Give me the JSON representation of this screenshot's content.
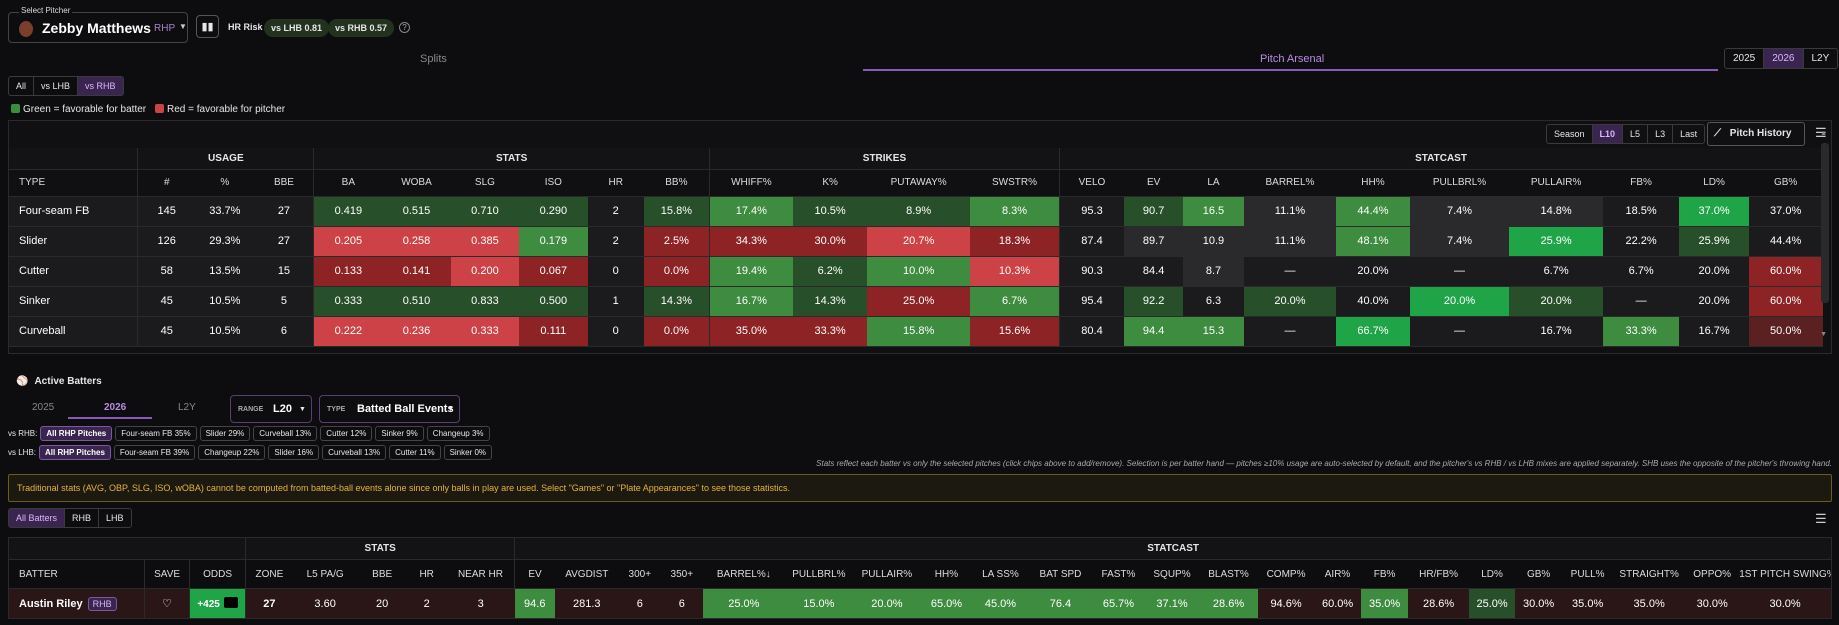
{
  "header": {
    "select_label": "Select Pitcher",
    "pitcher_name": "Zebby Matthews",
    "pitcher_hand": "RHP",
    "hr_risk_label": "HR Risk",
    "vs_lhb_label": "vs LHB",
    "vs_lhb_value": "0.81",
    "vs_rhb_label": "vs RHB",
    "vs_rhb_value": "0.57",
    "help": "?"
  },
  "tabs": {
    "splits": "Splits",
    "arsenal": "Pitch Arsenal"
  },
  "years": [
    "2025",
    "2026",
    "L2Y"
  ],
  "split_filter": [
    "All",
    "vs LHB",
    "vs RHB"
  ],
  "legend": {
    "green": "Green = favorable for batter",
    "red": "Red = favorable for pitcher"
  },
  "range_filter": [
    "Season",
    "L10",
    "L5",
    "L3",
    "Last"
  ],
  "pitch_history": "Pitch History",
  "arsenal": {
    "groups": [
      "",
      "USAGE",
      "STATS",
      "STRIKES",
      "STATCAST"
    ],
    "headers": [
      "TYPE",
      "#",
      "%",
      "BBE",
      "BA",
      "WOBA",
      "SLG",
      "ISO",
      "HR",
      "BB%",
      "WHIFF%",
      "K%",
      "PUTAWAY%",
      "SWSTR%",
      "VELO",
      "EV",
      "LA",
      "BARREL%",
      "HH%",
      "PULLBRL%",
      "PULLAIR%",
      "FB%",
      "LD%",
      "GB%"
    ],
    "rows": [
      [
        "Four-seam FB",
        "145",
        "33.7%",
        "27",
        "0.419",
        "0.515",
        "0.710",
        "0.290",
        "2",
        "15.8%",
        "17.4%",
        "10.5%",
        "8.9%",
        "8.3%",
        "95.3",
        "90.7",
        "16.5",
        "11.1%",
        "44.4%",
        "7.4%",
        "14.8%",
        "18.5%",
        "37.0%",
        "37.0%"
      ],
      [
        "Slider",
        "126",
        "29.3%",
        "27",
        "0.205",
        "0.258",
        "0.385",
        "0.179",
        "2",
        "2.5%",
        "34.3%",
        "30.0%",
        "20.7%",
        "18.3%",
        "87.4",
        "89.7",
        "10.9",
        "11.1%",
        "48.1%",
        "7.4%",
        "25.9%",
        "22.2%",
        "25.9%",
        "44.4%"
      ],
      [
        "Cutter",
        "58",
        "13.5%",
        "15",
        "0.133",
        "0.141",
        "0.200",
        "0.067",
        "0",
        "0.0%",
        "19.4%",
        "6.2%",
        "10.0%",
        "10.3%",
        "90.3",
        "84.4",
        "8.7",
        "—",
        "20.0%",
        "—",
        "6.7%",
        "6.7%",
        "20.0%",
        "60.0%"
      ],
      [
        "Sinker",
        "45",
        "10.5%",
        "5",
        "0.333",
        "0.510",
        "0.833",
        "0.500",
        "1",
        "14.3%",
        "16.7%",
        "14.3%",
        "25.0%",
        "6.7%",
        "95.4",
        "92.2",
        "6.3",
        "20.0%",
        "40.0%",
        "20.0%",
        "20.0%",
        "—",
        "20.0%",
        "60.0%"
      ],
      [
        "Curveball",
        "45",
        "10.5%",
        "6",
        "0.222",
        "0.236",
        "0.333",
        "0.111",
        "0",
        "0.0%",
        "35.0%",
        "33.3%",
        "15.8%",
        "15.6%",
        "80.4",
        "94.4",
        "15.3",
        "—",
        "66.7%",
        "—",
        "16.7%",
        "33.3%",
        "16.7%",
        "50.0%"
      ]
    ]
  },
  "active": {
    "title": "Active Batters",
    "years": [
      "2025",
      "2026",
      "L2Y"
    ],
    "range_label": "RANGE",
    "range_value": "L20",
    "type_label": "TYPE",
    "type_value": "Batted Ball Events",
    "vs_rhb_label": "vs RHB:",
    "vs_rhb_chips": [
      "All RHP Pitches",
      "Four-seam FB 35%",
      "Slider 29%",
      "Curveball 13%",
      "Cutter 12%",
      "Sinker 9%",
      "Changeup 3%"
    ],
    "vs_lhb_label": "vs LHB:",
    "vs_lhb_chips": [
      "All RHP Pitches",
      "Four-seam FB 39%",
      "Changeup 22%",
      "Slider 16%",
      "Curveball 13%",
      "Cutter 11%",
      "Sinker 0%"
    ],
    "note": "Stats reflect each batter vs only the selected pitches (click chips above to add/remove). Selection is per batter hand — pitches ≥10% usage are auto-selected by default, and the pitcher's vs RHB / vs LHB mixes are applied separately. SHB uses the opposite of the pitcher's throwing hand.",
    "warning": "Traditional stats (AVG, OBP, SLG, ISO, wOBA) cannot be computed from batted-ball events alone since only balls in play are used. Select \"Games\" or \"Plate Appearances\" to see those statistics.",
    "batter_filter": [
      "All Batters",
      "RHB",
      "LHB"
    ]
  },
  "batters": {
    "groups": [
      "STATS",
      "STATCAST"
    ],
    "headers": [
      "BATTER",
      "SAVE",
      "ODDS",
      "ZONE",
      "L5 PA/G",
      "BBE",
      "HR",
      "NEAR HR",
      "EV",
      "AVGDIST",
      "300+",
      "350+",
      "BARREL%↓",
      "PULLBRL%",
      "PULLAIR%",
      "HH%",
      "LA SS%",
      "BAT SPD",
      "FAST%",
      "SQUP%",
      "BLAST%",
      "COMP%",
      "AIR%",
      "FB%",
      "HR/FB%",
      "LD%",
      "GB%",
      "PULL%",
      "STRAIGHT%",
      "OPPO%",
      "1ST PITCH SWING%"
    ],
    "rows": [
      [
        "Austin Riley",
        "RHB",
        "♡",
        "+425",
        "27",
        "3.60",
        "20",
        "2",
        "3",
        "94.6",
        "281.3",
        "6",
        "6",
        "25.0%",
        "15.0%",
        "20.0%",
        "65.0%",
        "45.0%",
        "76.4",
        "65.7%",
        "37.1%",
        "28.6%",
        "94.6%",
        "60.0%",
        "35.0%",
        "28.6%",
        "25.0%",
        "30.0%",
        "35.0%",
        "35.0%",
        "30.0%",
        "30.0%"
      ]
    ]
  },
  "colors": {
    "accent": "#8a5ab8",
    "green_strong": "#1fa548",
    "green": "#3d8c3f",
    "green_dark": "#27502a",
    "red": "#cc4246",
    "red_dark": "#8e2326",
    "neutral": "#1b1b1d"
  }
}
